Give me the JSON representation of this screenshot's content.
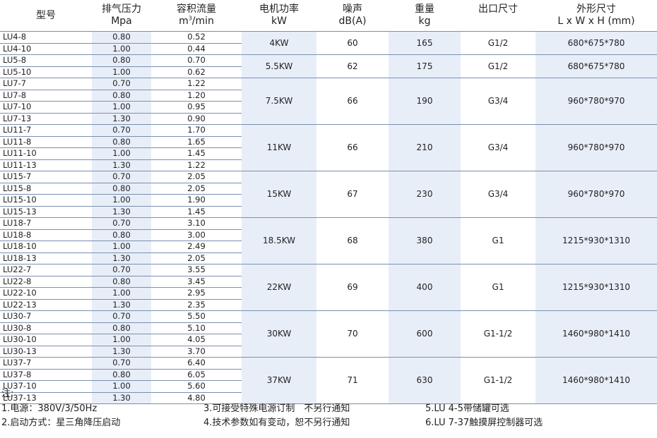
{
  "header": {
    "model": "型号",
    "pressure": [
      "排气压力",
      "Mpa"
    ],
    "flow": [
      "容积流量",
      "m",
      "3",
      "/min"
    ],
    "power": [
      "电机功率",
      "kW"
    ],
    "noise": [
      "噪声",
      "dB(A)"
    ],
    "weight": [
      "重量",
      "kg"
    ],
    "outlet": [
      "出口尺寸"
    ],
    "dims": [
      "外形尺寸",
      "L x W x H (mm)"
    ]
  },
  "groups": [
    {
      "power": "4KW",
      "noise": "60",
      "weight": "165",
      "outlet": "G1/2",
      "dims": "680*675*780",
      "rows": [
        [
          "LU4-8",
          "0.80",
          "0.52"
        ],
        [
          "LU4-10",
          "1.00",
          "0.44"
        ]
      ]
    },
    {
      "power": "5.5KW",
      "noise": "62",
      "weight": "175",
      "outlet": "G1/2",
      "dims": "680*675*780",
      "rows": [
        [
          "LU5-8",
          "0.80",
          "0.70"
        ],
        [
          "LU5-10",
          "1.00",
          "0.62"
        ]
      ]
    },
    {
      "power": "7.5KW",
      "noise": "66",
      "weight": "190",
      "outlet": "G3/4",
      "dims": "960*780*970",
      "rows": [
        [
          "LU7-7",
          "0.70",
          "1.22"
        ],
        [
          "LU7-8",
          "0.80",
          "1.20"
        ],
        [
          "LU7-10",
          "1.00",
          "0.95"
        ],
        [
          "LU7-13",
          "1.30",
          "0.90"
        ]
      ]
    },
    {
      "power": "11KW",
      "noise": "66",
      "weight": "210",
      "outlet": "G3/4",
      "dims": "960*780*970",
      "rows": [
        [
          "LU11-7",
          "0.70",
          "1.70"
        ],
        [
          "LU11-8",
          "0.80",
          "1.65"
        ],
        [
          "LU11-10",
          "1.00",
          "1.45"
        ],
        [
          "LU11-13",
          "1.30",
          "1.22"
        ]
      ]
    },
    {
      "power": "15KW",
      "noise": "67",
      "weight": "230",
      "outlet": "G3/4",
      "dims": "960*780*970",
      "rows": [
        [
          "LU15-7",
          "0.70",
          "2.05"
        ],
        [
          "LU15-8",
          "0.80",
          "2.05"
        ],
        [
          "LU15-10",
          "1.00",
          "1.90"
        ],
        [
          "LU15-13",
          "1.30",
          "1.45"
        ]
      ]
    },
    {
      "power": "18.5KW",
      "noise": "68",
      "weight": "380",
      "outlet": "G1",
      "dims": "1215*930*1310",
      "rows": [
        [
          "LU18-7",
          "0.70",
          "3.10"
        ],
        [
          "LU18-8",
          "0.80",
          "3.00"
        ],
        [
          "LU18-10",
          "1.00",
          "2.49"
        ],
        [
          "LU18-13",
          "1.30",
          "2.05"
        ]
      ]
    },
    {
      "power": "22KW",
      "noise": "69",
      "weight": "400",
      "outlet": "G1",
      "dims": "1215*930*1310",
      "rows": [
        [
          "LU22-7",
          "0.70",
          "3.55"
        ],
        [
          "LU22-8",
          "0.80",
          "3.45"
        ],
        [
          "LU22-10",
          "1.00",
          "2.95"
        ],
        [
          "LU22-13",
          "1.30",
          "2.35"
        ]
      ]
    },
    {
      "power": "30KW",
      "noise": "70",
      "weight": "600",
      "outlet": "G1-1/2",
      "dims": "1460*980*1410",
      "rows": [
        [
          "LU30-7",
          "0.70",
          "5.50"
        ],
        [
          "LU30-8",
          "0.80",
          "5.10"
        ],
        [
          "LU30-10",
          "1.00",
          "4.05"
        ],
        [
          "LU30-13",
          "1.30",
          "3.70"
        ]
      ]
    },
    {
      "power": "37KW",
      "noise": "71",
      "weight": "630",
      "outlet": "G1-1/2",
      "dims": "1460*980*1410",
      "rows": [
        [
          "LU37-7",
          "0.70",
          "6.40"
        ],
        [
          "LU37-8",
          "0.80",
          "6.05"
        ],
        [
          "LU37-10",
          "1.00",
          "5.60"
        ],
        [
          "LU37-13",
          "1.30",
          "4.80"
        ]
      ]
    }
  ],
  "notes": {
    "title": "注:",
    "col1": [
      "1.电源：380V/3/50Hz",
      "2.启动方式：星三角降压启动"
    ],
    "col2": [
      "3.可接受特殊电源订制　不另行通知",
      "4.技术参数如有变动，恕不另行通知"
    ],
    "col3": [
      "5.LU 4-5带储罐可选",
      "6.LU 7-37触摸屏控制器可选"
    ]
  }
}
